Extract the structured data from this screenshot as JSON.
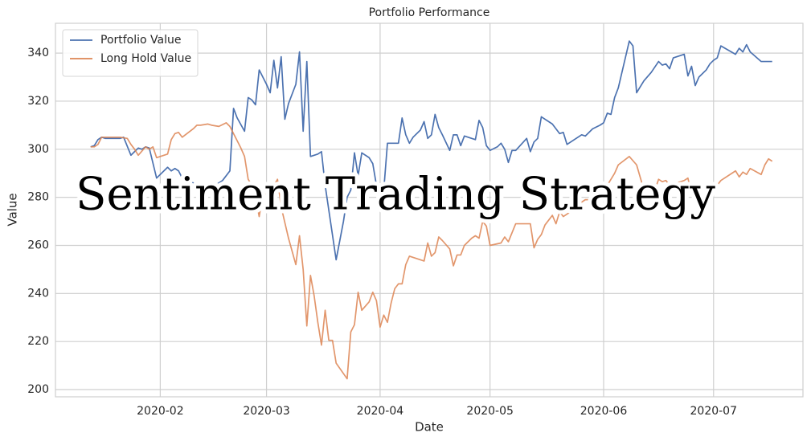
{
  "chart_data": {
    "type": "line",
    "title": "Portfolio Performance",
    "x_label": "Date",
    "y_label": "Value",
    "overlay_title": "Sentiment Trading Strategy",
    "xlim": [
      2.4,
      206.4
    ],
    "xticks": [
      {
        "value": 31,
        "label": "2020-02"
      },
      {
        "value": 60,
        "label": "2020-03"
      },
      {
        "value": 91,
        "label": "2020-04"
      },
      {
        "value": 121,
        "label": "2020-05"
      },
      {
        "value": 152,
        "label": "2020-06"
      },
      {
        "value": 182,
        "label": "2020-07"
      }
    ],
    "ylim": [
      197,
      352.4
    ],
    "yticks": [
      200,
      220,
      240,
      260,
      280,
      300,
      320,
      340
    ],
    "grid": true,
    "legend": "upper left",
    "series": [
      {
        "name": "Portfolio Value",
        "color": "#4c72b0",
        "x": [
          12,
          13,
          14,
          15,
          16,
          20,
          21,
          23,
          24,
          25,
          26,
          27,
          28,
          30,
          33,
          34,
          35,
          36,
          37,
          40,
          42,
          45,
          48,
          50,
          51,
          52,
          54,
          55,
          56,
          57,
          58,
          60,
          61,
          62,
          63,
          64,
          65,
          66,
          68,
          69,
          70,
          71,
          72,
          74,
          75,
          76,
          79,
          81,
          82,
          83,
          84,
          85,
          86,
          88,
          89,
          90,
          91,
          92,
          93,
          94,
          96,
          97,
          98,
          99,
          100,
          102,
          103,
          104,
          105,
          106,
          107,
          108,
          110,
          111,
          112,
          113,
          114,
          116,
          117,
          118,
          119,
          120,
          121,
          123,
          124,
          125,
          126,
          127,
          128,
          131,
          132,
          133,
          134,
          135,
          138,
          140,
          141,
          142,
          144,
          146,
          147,
          149,
          151,
          152,
          153,
          154,
          155,
          156,
          159,
          160,
          161,
          163,
          165,
          167,
          168,
          169,
          170,
          171,
          174,
          175,
          176,
          177,
          178,
          180,
          181,
          182,
          183,
          184,
          188,
          189,
          190,
          191,
          192,
          195,
          198
        ],
        "values": [
          301,
          301.5,
          304,
          305,
          304.5,
          304.5,
          305,
          297.5,
          299,
          300.5,
          300,
          301,
          300.5,
          288,
          292.5,
          291,
          292,
          291,
          288,
          286,
          284,
          284,
          287,
          291,
          317,
          313,
          307.5,
          321.5,
          320.5,
          318.5,
          333,
          327,
          323.5,
          337,
          325.5,
          338.5,
          312.5,
          319,
          327,
          340.5,
          307.5,
          336.5,
          297,
          298,
          299,
          285,
          254,
          270,
          280,
          283,
          298.5,
          289,
          298.5,
          296.5,
          294,
          285,
          285,
          283,
          302.5,
          302.5,
          302.5,
          313,
          306,
          302.5,
          305,
          308,
          311.5,
          304.5,
          306,
          314.5,
          309,
          306,
          299.5,
          306,
          306,
          301.5,
          305.5,
          304.5,
          304,
          312,
          309,
          301.5,
          299.5,
          301,
          302.5,
          300,
          294.5,
          299.5,
          299.5,
          304.5,
          299,
          303,
          304.5,
          313.5,
          310.5,
          306.5,
          307,
          302,
          304,
          306,
          305.5,
          308.5,
          310,
          311,
          315,
          314.5,
          321.5,
          325.5,
          345,
          343,
          323.5,
          328.5,
          332,
          336.5,
          335,
          335.5,
          333.5,
          338,
          339.5,
          330.5,
          334.5,
          326.5,
          330,
          333,
          335.5,
          337,
          338,
          343,
          339.5,
          342,
          340.5,
          343.5,
          340.5,
          336.5,
          336.5
        ]
      },
      {
        "name": "Long Hold Value",
        "color": "#dd8452",
        "x": [
          12,
          13,
          14,
          15,
          20,
          22,
          23,
          24,
          25,
          27,
          28,
          29,
          30,
          33,
          34,
          35,
          36,
          37,
          40,
          41,
          42,
          44,
          45,
          47,
          49,
          50,
          53,
          54,
          55,
          56,
          57,
          58,
          59,
          61,
          63,
          64,
          66,
          68,
          69,
          70,
          71,
          72,
          73,
          74,
          75,
          76,
          77,
          78,
          79,
          82,
          83,
          84,
          85,
          86,
          88,
          89,
          90,
          91,
          92,
          93,
          94,
          95,
          96,
          97,
          98,
          99,
          103,
          104,
          105,
          106,
          107,
          108,
          110,
          111,
          112,
          113,
          114,
          116,
          117,
          118,
          119,
          120,
          121,
          124,
          125,
          126,
          128,
          132,
          133,
          134,
          135,
          136,
          138,
          139,
          140,
          141,
          142,
          144,
          146,
          147,
          149,
          151,
          152,
          153,
          155,
          156,
          159,
          161,
          163,
          165,
          166,
          167,
          168,
          169,
          170,
          174,
          175,
          176,
          177,
          178,
          181,
          182,
          183,
          184,
          188,
          189,
          190,
          191,
          192,
          195,
          196,
          197,
          198
        ],
        "values": [
          301,
          301,
          302,
          305,
          305,
          304.5,
          302,
          300,
          297.5,
          301,
          300,
          301,
          296.5,
          298,
          304,
          306.5,
          307,
          305,
          308.5,
          310,
          310,
          310.5,
          310,
          309.5,
          311,
          309.5,
          300.5,
          297,
          287.5,
          285,
          280,
          272,
          281,
          282,
          287.5,
          276,
          263,
          252,
          264,
          250,
          226.5,
          247.5,
          239,
          228,
          218.5,
          233,
          220.5,
          220.5,
          211,
          204.5,
          224,
          227,
          240.5,
          233,
          236.5,
          240.5,
          237,
          226,
          231,
          228,
          236,
          242,
          244,
          244,
          252,
          255.5,
          253.5,
          261,
          255.5,
          257,
          263.5,
          262,
          258.5,
          251.5,
          256,
          256,
          260,
          263,
          264,
          263,
          270,
          268,
          260,
          261,
          263.5,
          261.5,
          269,
          269,
          259,
          262.5,
          264.5,
          268.5,
          272.5,
          269,
          274,
          272,
          273,
          275,
          278,
          279,
          279,
          281,
          282.5,
          285,
          290,
          293.5,
          297,
          293.5,
          283,
          280,
          283,
          287.5,
          286.5,
          287,
          285,
          287,
          288,
          281.5,
          280,
          277,
          280,
          283,
          285,
          287,
          291,
          288.5,
          290.5,
          289.5,
          292,
          289.5,
          293.5,
          296,
          295
        ]
      }
    ]
  }
}
